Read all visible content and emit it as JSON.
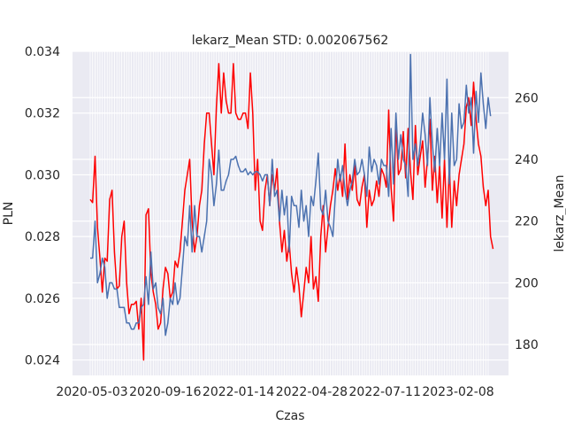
{
  "chart_data": {
    "type": "line",
    "title": "lekarz_Mean STD: 0.002067562",
    "xlabel": "Czas",
    "ylabel_left": "PLN",
    "ylabel_right": "lekarz_Mean",
    "x_tick_labels": [
      "2020-05-03",
      "2020-09-16",
      "2022-01-14",
      "2022-04-28",
      "2022-07-11",
      "2023-02-08"
    ],
    "y_left_ticks": [
      "0.024",
      "0.026",
      "0.028",
      "0.030",
      "0.032",
      "0.034"
    ],
    "y_right_ticks": [
      "180",
      "200",
      "220",
      "240",
      "260"
    ],
    "ylim_left": [
      0.0235,
      0.034
    ],
    "ylim_right": [
      170,
      275
    ],
    "n_points": 165,
    "grid": true,
    "series": [
      {
        "axis": "left",
        "color": "#ff0000",
        "values": [
          0.0292,
          0.0291,
          0.0306,
          0.0283,
          0.0273,
          0.0262,
          0.0273,
          0.0272,
          0.0292,
          0.0295,
          0.0275,
          0.0263,
          0.0264,
          0.028,
          0.0285,
          0.0265,
          0.0255,
          0.0258,
          0.0258,
          0.0259,
          0.025,
          0.026,
          0.024,
          0.0287,
          0.0289,
          0.0268,
          0.0262,
          0.0258,
          0.025,
          0.0252,
          0.0263,
          0.027,
          0.0268,
          0.026,
          0.0262,
          0.0272,
          0.027,
          0.0275,
          0.0285,
          0.0295,
          0.03,
          0.0305,
          0.0285,
          0.0275,
          0.028,
          0.029,
          0.0295,
          0.031,
          0.032,
          0.032,
          0.031,
          0.03,
          0.0322,
          0.0336,
          0.032,
          0.0333,
          0.0324,
          0.032,
          0.032,
          0.0336,
          0.032,
          0.0318,
          0.0318,
          0.032,
          0.032,
          0.0315,
          0.0333,
          0.032,
          0.0295,
          0.0305,
          0.0285,
          0.0282,
          0.0295,
          0.03,
          0.029,
          0.03,
          0.0295,
          0.0302,
          0.0285,
          0.0275,
          0.0282,
          0.0272,
          0.0278,
          0.0268,
          0.0262,
          0.027,
          0.0264,
          0.0254,
          0.0262,
          0.027,
          0.0265,
          0.028,
          0.0263,
          0.0267,
          0.0259,
          0.028,
          0.029,
          0.0275,
          0.0283,
          0.029,
          0.0295,
          0.0302,
          0.0295,
          0.03,
          0.0293,
          0.031,
          0.0292,
          0.03,
          0.0295,
          0.0303,
          0.0292,
          0.029,
          0.0296,
          0.03,
          0.0283,
          0.0295,
          0.029,
          0.0292,
          0.0298,
          0.0293,
          0.0302,
          0.03,
          0.0296,
          0.0321,
          0.0296,
          0.0285,
          0.0317,
          0.03,
          0.0302,
          0.0314,
          0.0299,
          0.0315,
          0.0301,
          0.0292,
          0.0316,
          0.03,
          0.0306,
          0.0311,
          0.0296,
          0.0305,
          0.0318,
          0.0295,
          0.0306,
          0.0291,
          0.0303,
          0.0286,
          0.0305,
          0.0283,
          0.0303,
          0.0283,
          0.0298,
          0.029,
          0.03,
          0.0305,
          0.031,
          0.0322,
          0.0325,
          0.0316,
          0.033,
          0.0318,
          0.031,
          0.0306,
          0.0296,
          0.029,
          0.0295,
          0.028,
          0.0276
        ]
      },
      {
        "axis": "right",
        "color": "#4c72b0",
        "values": [
          208,
          208,
          220,
          200,
          203,
          208,
          205,
          195,
          200,
          200,
          198,
          198,
          192,
          192,
          192,
          187,
          187,
          185,
          185,
          187,
          187,
          192,
          193,
          202,
          193,
          210,
          198,
          200,
          192,
          190,
          195,
          183,
          187,
          195,
          193,
          200,
          193,
          195,
          205,
          215,
          212,
          225,
          210,
          225,
          215,
          215,
          210,
          215,
          220,
          240,
          235,
          225,
          232,
          243,
          230,
          230,
          233,
          235,
          240,
          240,
          241,
          238,
          236,
          236,
          237,
          235,
          236,
          235,
          236,
          236,
          235,
          233,
          235,
          235,
          225,
          240,
          228,
          230,
          220,
          230,
          222,
          228,
          210,
          228,
          225,
          225,
          218,
          230,
          220,
          225,
          215,
          228,
          225,
          233,
          242,
          224,
          222,
          230,
          220,
          218,
          215,
          228,
          240,
          233,
          238,
          230,
          225,
          230,
          233,
          240,
          235,
          236,
          240,
          235,
          228,
          244,
          236,
          240,
          238,
          232,
          240,
          238,
          238,
          228,
          250,
          232,
          255,
          240,
          248,
          240,
          238,
          228,
          274,
          240,
          245,
          238,
          245,
          255,
          248,
          238,
          260,
          245,
          236,
          250,
          238,
          255,
          240,
          266,
          232,
          255,
          238,
          240,
          258,
          250,
          252,
          264,
          255,
          260,
          242,
          262,
          252,
          268,
          258,
          250,
          260,
          254
        ]
      }
    ]
  }
}
